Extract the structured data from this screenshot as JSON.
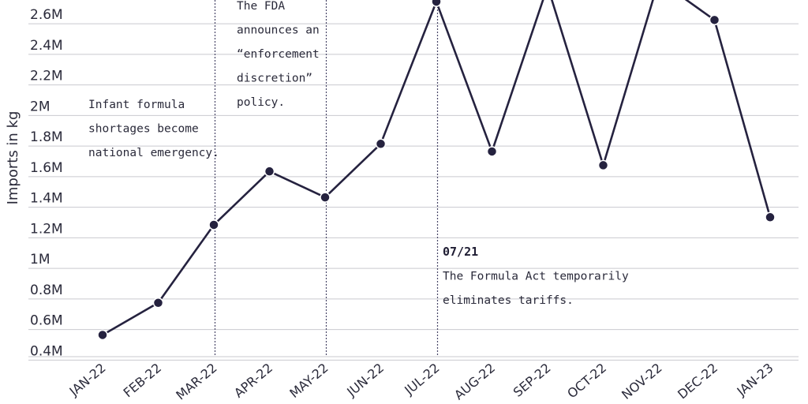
{
  "chart_data": {
    "type": "line",
    "ylabel": "Imports in kg",
    "x": [
      "JAN-22",
      "FEB-22",
      "MAR-22",
      "APR-22",
      "MAY-22",
      "JUN-22",
      "JUL-22",
      "AUG-22",
      "SEP-22",
      "OCT-22",
      "NOV-22",
      "DEC-22",
      "JAN-23"
    ],
    "y_ticks": [
      {
        "value": 400000,
        "label": "0.4M"
      },
      {
        "value": 600000,
        "label": "0.6M"
      },
      {
        "value": 800000,
        "label": "0.8M"
      },
      {
        "value": 1000000,
        "label": "1M"
      },
      {
        "value": 1200000,
        "label": "1.2M"
      },
      {
        "value": 1400000,
        "label": "1.4M"
      },
      {
        "value": 1600000,
        "label": "1.6M"
      },
      {
        "value": 1800000,
        "label": "1.8M"
      },
      {
        "value": 2000000,
        "label": "2M"
      },
      {
        "value": 2200000,
        "label": "2.2M"
      },
      {
        "value": 2400000,
        "label": "2.4M"
      },
      {
        "value": 2600000,
        "label": "2.6M"
      }
    ],
    "ylim": [
      360000,
      2680000
    ],
    "series": [
      {
        "values": [
          500000,
          710000,
          1220000,
          1570000,
          1400000,
          1750000,
          2680000,
          1700000,
          2780000,
          1610000,
          2820000,
          2560000,
          1270000
        ]
      }
    ],
    "line_color": "#25223f",
    "grid": true,
    "annotations": [
      {
        "x_index": 2,
        "lines": [
          "Infant formula",
          "shortages become",
          "national emergency."
        ],
        "bold": ""
      },
      {
        "x_index": 4,
        "lines": [
          "The FDA",
          "announces an",
          "“enforcement",
          "discretion”",
          "policy."
        ],
        "bold": ""
      },
      {
        "x_index": 6,
        "lines": [
          "The Formula Act temporarily",
          "eliminates tariffs."
        ],
        "bold": "07/21"
      }
    ]
  }
}
